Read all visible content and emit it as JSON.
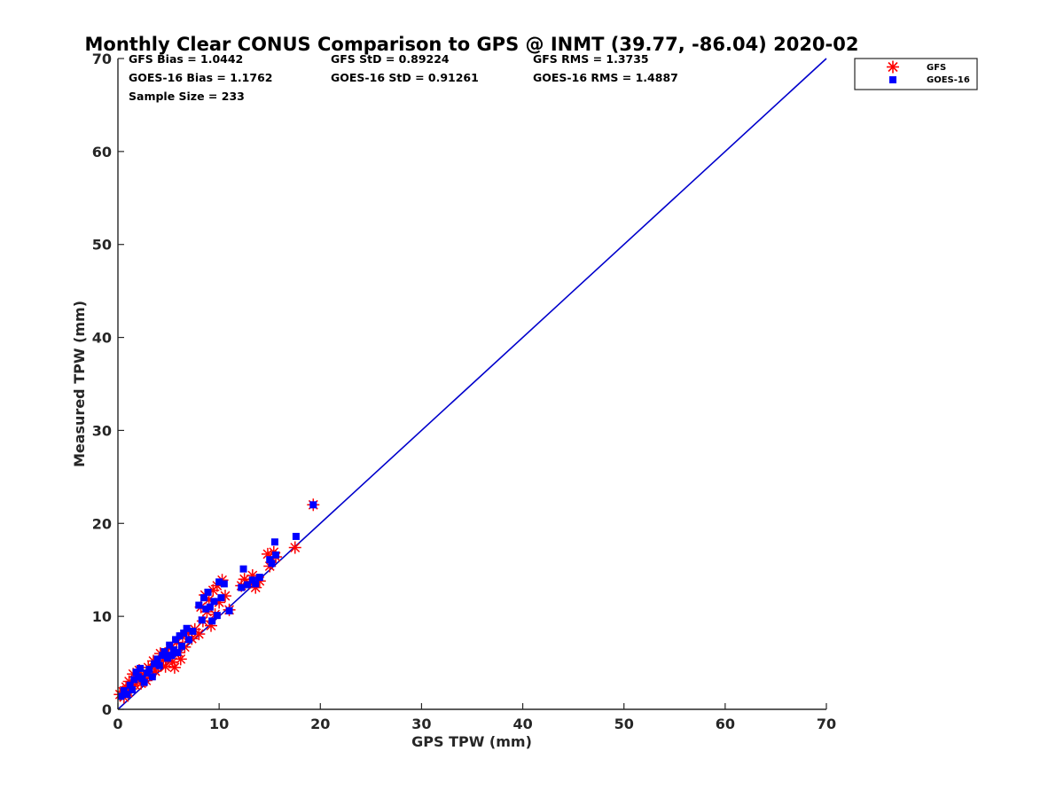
{
  "chart_data": {
    "type": "scatter",
    "title": "Monthly Clear CONUS Comparison to GPS @ INMT (39.77, -86.04) 2020-02",
    "xlabel": "GPS TPW (mm)",
    "ylabel": "Measured TPW (mm)",
    "xlim": [
      0,
      70
    ],
    "ylim": [
      0,
      70
    ],
    "xticks": [
      "0",
      "10",
      "20",
      "30",
      "40",
      "50",
      "60",
      "70"
    ],
    "yticks": [
      "0",
      "10",
      "20",
      "30",
      "40",
      "50",
      "60",
      "70"
    ],
    "grid": false,
    "legend_position": "outside top-right",
    "stats": [
      "GFS Bias = 1.0442",
      "GFS StD = 0.89224",
      "GFS RMS = 1.3735",
      "GOES-16 Bias = 1.1762",
      "GOES-16 StD = 0.91261",
      "GOES-16 RMS = 1.4887",
      "Sample Size = 233"
    ],
    "reference_line": {
      "x": [
        0,
        70
      ],
      "y": [
        0,
        70
      ],
      "color": "#0000cc"
    },
    "series": [
      {
        "name": "GFS",
        "marker": "asterisk",
        "color": "#ff0000",
        "points": [
          [
            0.2,
            1.6
          ],
          [
            0.5,
            1.9
          ],
          [
            0.6,
            1.3
          ],
          [
            0.8,
            2.4
          ],
          [
            1.0,
            1.8
          ],
          [
            1.1,
            3.0
          ],
          [
            1.3,
            2.2
          ],
          [
            1.5,
            3.8
          ],
          [
            1.7,
            2.6
          ],
          [
            1.9,
            3.3
          ],
          [
            2.1,
            4.2
          ],
          [
            2.3,
            2.8
          ],
          [
            2.5,
            3.6
          ],
          [
            2.8,
            3.1
          ],
          [
            3.0,
            4.5
          ],
          [
            3.2,
            3.7
          ],
          [
            3.5,
            5.2
          ],
          [
            3.7,
            4.1
          ],
          [
            4.0,
            4.8
          ],
          [
            4.2,
            6.0
          ],
          [
            4.5,
            5.3
          ],
          [
            4.7,
            4.6
          ],
          [
            5.0,
            5.9
          ],
          [
            5.2,
            6.6
          ],
          [
            5.4,
            5.1
          ],
          [
            5.6,
            4.5
          ],
          [
            5.8,
            7.2
          ],
          [
            6.0,
            6.1
          ],
          [
            6.2,
            5.4
          ],
          [
            6.4,
            7.8
          ],
          [
            6.6,
            6.7
          ],
          [
            7.0,
            8.3
          ],
          [
            7.3,
            7.6
          ],
          [
            7.6,
            8.6
          ],
          [
            8.0,
            8.1
          ],
          [
            8.2,
            11.0
          ],
          [
            8.4,
            9.5
          ],
          [
            8.6,
            12.3
          ],
          [
            8.8,
            10.5
          ],
          [
            9.0,
            11.8
          ],
          [
            9.2,
            9.0
          ],
          [
            9.4,
            12.8
          ],
          [
            9.6,
            10.2
          ],
          [
            9.8,
            13.3
          ],
          [
            10.0,
            11.5
          ],
          [
            10.3,
            13.9
          ],
          [
            10.6,
            12.2
          ],
          [
            11.0,
            10.7
          ],
          [
            12.2,
            13.3
          ],
          [
            12.5,
            14.0
          ],
          [
            13.0,
            13.6
          ],
          [
            13.3,
            14.4
          ],
          [
            13.6,
            13.1
          ],
          [
            14.0,
            13.8
          ],
          [
            14.8,
            16.7
          ],
          [
            15.0,
            15.4
          ],
          [
            15.4,
            16.9
          ],
          [
            15.6,
            16.4
          ],
          [
            17.5,
            17.4
          ],
          [
            19.3,
            22.0
          ]
        ]
      },
      {
        "name": "GOES-16",
        "marker": "square",
        "color": "#0000ff",
        "points": [
          [
            0.3,
            1.4
          ],
          [
            0.6,
            2.0
          ],
          [
            0.9,
            1.6
          ],
          [
            1.2,
            2.6
          ],
          [
            1.4,
            2.1
          ],
          [
            1.6,
            3.2
          ],
          [
            1.8,
            4.0
          ],
          [
            2.0,
            3.5
          ],
          [
            2.2,
            4.4
          ],
          [
            2.4,
            3.3
          ],
          [
            2.6,
            2.9
          ],
          [
            2.9,
            3.9
          ],
          [
            3.1,
            4.3
          ],
          [
            3.4,
            3.5
          ],
          [
            3.6,
            4.9
          ],
          [
            3.9,
            5.4
          ],
          [
            4.1,
            4.7
          ],
          [
            4.4,
            5.8
          ],
          [
            4.6,
            6.2
          ],
          [
            4.9,
            5.5
          ],
          [
            5.1,
            6.9
          ],
          [
            5.3,
            5.8
          ],
          [
            5.5,
            6.4
          ],
          [
            5.7,
            7.5
          ],
          [
            5.9,
            6.1
          ],
          [
            6.1,
            7.9
          ],
          [
            6.3,
            6.8
          ],
          [
            6.5,
            8.2
          ],
          [
            6.8,
            8.7
          ],
          [
            7.0,
            7.5
          ],
          [
            7.4,
            8.4
          ],
          [
            8.0,
            11.2
          ],
          [
            8.3,
            9.6
          ],
          [
            8.5,
            12.0
          ],
          [
            8.7,
            10.8
          ],
          [
            8.9,
            12.6
          ],
          [
            9.1,
            11.0
          ],
          [
            9.3,
            9.5
          ],
          [
            9.5,
            11.6
          ],
          [
            9.8,
            10.1
          ],
          [
            10.0,
            13.7
          ],
          [
            10.2,
            12.0
          ],
          [
            10.5,
            13.5
          ],
          [
            11.0,
            10.6
          ],
          [
            12.2,
            13.1
          ],
          [
            12.4,
            15.1
          ],
          [
            12.8,
            13.4
          ],
          [
            13.3,
            13.9
          ],
          [
            13.6,
            13.5
          ],
          [
            14.0,
            14.2
          ],
          [
            15.0,
            16.1
          ],
          [
            15.2,
            15.7
          ],
          [
            15.5,
            18.0
          ],
          [
            15.6,
            16.6
          ],
          [
            17.6,
            18.6
          ],
          [
            19.3,
            22.0
          ]
        ]
      }
    ]
  }
}
